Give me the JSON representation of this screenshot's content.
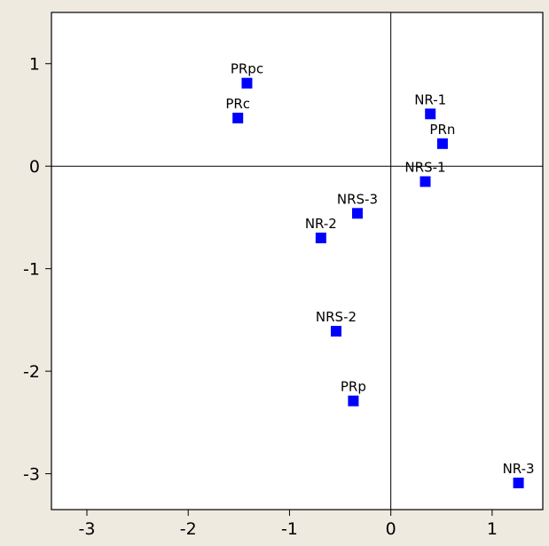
{
  "chart_data": {
    "type": "scatter",
    "title": "",
    "xlabel": "",
    "ylabel": "",
    "xlim": [
      -3.35,
      1.5
    ],
    "ylim": [
      -3.35,
      1.5
    ],
    "x_ticks": [
      -3,
      -2,
      -1,
      0,
      1
    ],
    "y_ticks": [
      1,
      0,
      -1,
      -2,
      -3
    ],
    "x_tick_labels": [
      "-3",
      "-2",
      "-1",
      "0",
      "1"
    ],
    "y_tick_labels": [
      "1",
      "0",
      "-1",
      "-2",
      "-3"
    ],
    "reference_lines": {
      "x": 0,
      "y": 0
    },
    "grid": false,
    "legend": "none",
    "marker_color": "#0000ff",
    "background_color": "#efeae0",
    "plot_background_color": "#ffffff",
    "points": [
      {
        "label": "PRpc",
        "x": -1.42,
        "y": 0.81
      },
      {
        "label": "PRc",
        "x": -1.51,
        "y": 0.47
      },
      {
        "label": "NR-1",
        "x": 0.39,
        "y": 0.51
      },
      {
        "label": "PRn",
        "x": 0.51,
        "y": 0.22
      },
      {
        "label": "NRS-1",
        "x": 0.34,
        "y": -0.15
      },
      {
        "label": "NRS-3",
        "x": -0.33,
        "y": -0.46
      },
      {
        "label": "NR-2",
        "x": -0.69,
        "y": -0.7
      },
      {
        "label": "NRS-2",
        "x": -0.54,
        "y": -1.61
      },
      {
        "label": "PRp",
        "x": -0.37,
        "y": -2.29
      },
      {
        "label": "NR-3",
        "x": 1.26,
        "y": -3.09
      }
    ]
  }
}
